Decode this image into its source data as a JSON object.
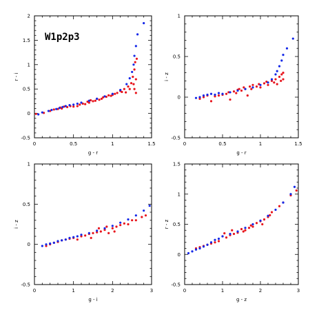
{
  "figure_title": "W1p2p3",
  "colors": {
    "red": "#e8141c",
    "blue": "#1428e8",
    "axis": "#000000"
  },
  "chart_data": [
    {
      "type": "scatter",
      "title": "W1p2p3",
      "xlabel": "g - r",
      "ylabel": "r - i",
      "xlim": [
        0,
        1.5
      ],
      "ylim": [
        -0.5,
        2
      ],
      "xticks": [
        0,
        0.5,
        1,
        1.5
      ],
      "yticks": [
        -0.5,
        0,
        0.5,
        1,
        1.5,
        2
      ],
      "xticklabels": [
        "0",
        "0.5",
        "1",
        "1.5"
      ],
      "yticklabels": [
        "-0.5",
        "0",
        "0.5",
        "1",
        "1.5",
        "2"
      ],
      "series": [
        {
          "color": "red",
          "points": [
            [
              0.02,
              -0.01
            ],
            [
              0.12,
              0.01
            ],
            [
              0.2,
              0.05
            ],
            [
              0.25,
              0.08
            ],
            [
              0.3,
              0.09
            ],
            [
              0.33,
              0.12
            ],
            [
              0.35,
              0.1
            ],
            [
              0.38,
              0.14
            ],
            [
              0.42,
              0.13
            ],
            [
              0.46,
              0.15
            ],
            [
              0.5,
              0.14
            ],
            [
              0.55,
              0.15
            ],
            [
              0.58,
              0.18
            ],
            [
              0.62,
              0.2
            ],
            [
              0.65,
              0.19
            ],
            [
              0.68,
              0.24
            ],
            [
              0.7,
              0.22
            ],
            [
              0.72,
              0.27
            ],
            [
              0.75,
              0.25
            ],
            [
              0.78,
              0.26
            ],
            [
              0.8,
              0.3
            ],
            [
              0.83,
              0.28
            ],
            [
              0.86,
              0.3
            ],
            [
              0.88,
              0.33
            ],
            [
              0.92,
              0.34
            ],
            [
              0.95,
              0.37
            ],
            [
              0.98,
              0.36
            ],
            [
              1.0,
              0.38
            ],
            [
              1.03,
              0.4
            ],
            [
              1.06,
              0.42
            ],
            [
              1.1,
              0.46
            ],
            [
              1.12,
              0.44
            ],
            [
              1.15,
              0.5
            ],
            [
              1.17,
              0.43
            ],
            [
              1.2,
              0.55
            ],
            [
              1.22,
              0.5
            ],
            [
              1.24,
              0.62
            ],
            [
              1.26,
              0.75
            ],
            [
              1.27,
              0.6
            ],
            [
              1.28,
              0.9
            ],
            [
              1.28,
              0.5
            ],
            [
              1.29,
              1.05
            ],
            [
              1.3,
              0.7
            ],
            [
              1.3,
              0.42
            ],
            [
              1.31,
              1.12
            ]
          ]
        },
        {
          "color": "blue",
          "points": [
            [
              0.05,
              -0.02
            ],
            [
              0.1,
              0.02
            ],
            [
              0.18,
              0.05
            ],
            [
              0.22,
              0.07
            ],
            [
              0.28,
              0.09
            ],
            [
              0.32,
              0.11
            ],
            [
              0.36,
              0.13
            ],
            [
              0.4,
              0.15
            ],
            [
              0.45,
              0.17
            ],
            [
              0.5,
              0.18
            ],
            [
              0.55,
              0.2
            ],
            [
              0.6,
              0.22
            ],
            [
              0.7,
              0.26
            ],
            [
              0.8,
              0.3
            ],
            [
              0.9,
              0.35
            ],
            [
              1.0,
              0.4
            ],
            [
              1.1,
              0.48
            ],
            [
              1.18,
              0.6
            ],
            [
              1.22,
              0.72
            ],
            [
              1.25,
              0.85
            ],
            [
              1.27,
              1.0
            ],
            [
              1.28,
              1.18
            ],
            [
              1.3,
              1.38
            ],
            [
              1.32,
              1.62
            ],
            [
              1.4,
              1.85
            ]
          ]
        }
      ]
    },
    {
      "type": "scatter",
      "xlabel": "g - r",
      "ylabel": "i - z",
      "xlim": [
        0,
        1.5
      ],
      "ylim": [
        -0.5,
        1
      ],
      "xticks": [
        0,
        0.5,
        1,
        1.5
      ],
      "yticks": [
        -0.5,
        0,
        0.5,
        1
      ],
      "xticklabels": [
        "0",
        "0.5",
        "1",
        "1.5"
      ],
      "yticklabels": [
        "-0.5",
        "0",
        "0.5",
        "1"
      ],
      "series": [
        {
          "color": "red",
          "points": [
            [
              0.2,
              -0.02
            ],
            [
              0.25,
              0.0
            ],
            [
              0.3,
              0.02
            ],
            [
              0.35,
              -0.05
            ],
            [
              0.4,
              0.01
            ],
            [
              0.45,
              0.02
            ],
            [
              0.5,
              0.03
            ],
            [
              0.55,
              0.04
            ],
            [
              0.58,
              0.06
            ],
            [
              0.6,
              -0.03
            ],
            [
              0.65,
              0.07
            ],
            [
              0.68,
              0.05
            ],
            [
              0.7,
              0.09
            ],
            [
              0.72,
              0.1
            ],
            [
              0.75,
              0.08
            ],
            [
              0.78,
              0.12
            ],
            [
              0.8,
              0.1
            ],
            [
              0.83,
              0.02
            ],
            [
              0.86,
              0.13
            ],
            [
              0.88,
              0.1
            ],
            [
              0.9,
              0.15
            ],
            [
              0.95,
              0.13
            ],
            [
              0.98,
              0.16
            ],
            [
              1.0,
              0.12
            ],
            [
              1.05,
              0.17
            ],
            [
              1.08,
              0.19
            ],
            [
              1.1,
              0.15
            ],
            [
              1.15,
              0.2
            ],
            [
              1.18,
              0.18
            ],
            [
              1.2,
              0.22
            ],
            [
              1.22,
              0.16
            ],
            [
              1.25,
              0.25
            ],
            [
              1.27,
              0.2
            ],
            [
              1.28,
              0.28
            ],
            [
              1.3,
              0.3
            ],
            [
              1.3,
              0.22
            ]
          ]
        },
        {
          "color": "blue",
          "points": [
            [
              0.15,
              -0.01
            ],
            [
              0.2,
              0.0
            ],
            [
              0.25,
              0.02
            ],
            [
              0.3,
              0.03
            ],
            [
              0.35,
              0.04
            ],
            [
              0.4,
              0.03
            ],
            [
              0.45,
              0.05
            ],
            [
              0.5,
              0.04
            ],
            [
              0.6,
              0.06
            ],
            [
              0.7,
              0.08
            ],
            [
              0.8,
              0.1
            ],
            [
              0.9,
              0.12
            ],
            [
              1.0,
              0.15
            ],
            [
              1.1,
              0.18
            ],
            [
              1.15,
              0.22
            ],
            [
              1.2,
              0.28
            ],
            [
              1.22,
              0.32
            ],
            [
              1.25,
              0.38
            ],
            [
              1.28,
              0.45
            ],
            [
              1.3,
              0.52
            ],
            [
              1.35,
              0.6
            ],
            [
              1.43,
              0.72
            ]
          ]
        }
      ]
    },
    {
      "type": "scatter",
      "xlabel": "g - i",
      "ylabel": "i - z",
      "xlim": [
        0,
        3
      ],
      "ylim": [
        -0.5,
        1
      ],
      "xticks": [
        0,
        1,
        2,
        3
      ],
      "yticks": [
        -0.5,
        0,
        0.5,
        1
      ],
      "xticklabels": [
        "0",
        "1",
        "2",
        "3"
      ],
      "yticklabels": [
        "-0.5",
        "0",
        "0.5",
        "1"
      ],
      "series": [
        {
          "color": "red",
          "points": [
            [
              0.3,
              -0.02
            ],
            [
              0.4,
              0.0
            ],
            [
              0.5,
              0.02
            ],
            [
              0.6,
              0.03
            ],
            [
              0.7,
              0.05
            ],
            [
              0.8,
              0.06
            ],
            [
              0.9,
              0.07
            ],
            [
              1.0,
              0.08
            ],
            [
              1.1,
              0.06
            ],
            [
              1.2,
              0.1
            ],
            [
              1.3,
              0.11
            ],
            [
              1.4,
              0.13
            ],
            [
              1.45,
              0.08
            ],
            [
              1.5,
              0.14
            ],
            [
              1.6,
              0.15
            ],
            [
              1.65,
              0.2
            ],
            [
              1.7,
              0.16
            ],
            [
              1.8,
              0.18
            ],
            [
              1.85,
              0.22
            ],
            [
              1.9,
              0.14
            ],
            [
              2.0,
              0.2
            ],
            [
              2.05,
              0.16
            ],
            [
              2.1,
              0.22
            ],
            [
              2.2,
              0.24
            ],
            [
              2.3,
              0.26
            ],
            [
              2.4,
              0.25
            ],
            [
              2.5,
              0.3
            ],
            [
              2.6,
              0.3
            ],
            [
              2.75,
              0.34
            ],
            [
              2.85,
              0.36
            ]
          ]
        },
        {
          "color": "blue",
          "points": [
            [
              0.2,
              -0.02
            ],
            [
              0.3,
              0.0
            ],
            [
              0.4,
              0.01
            ],
            [
              0.5,
              0.02
            ],
            [
              0.6,
              0.04
            ],
            [
              0.7,
              0.05
            ],
            [
              0.8,
              0.06
            ],
            [
              0.9,
              0.08
            ],
            [
              1.0,
              0.09
            ],
            [
              1.1,
              0.1
            ],
            [
              1.2,
              0.12
            ],
            [
              1.4,
              0.14
            ],
            [
              1.6,
              0.17
            ],
            [
              1.8,
              0.2
            ],
            [
              2.0,
              0.23
            ],
            [
              2.2,
              0.27
            ],
            [
              2.4,
              0.31
            ],
            [
              2.6,
              0.36
            ],
            [
              2.8,
              0.42
            ],
            [
              2.95,
              0.48
            ]
          ]
        }
      ]
    },
    {
      "type": "scatter",
      "xlabel": "g - z",
      "ylabel": "r - z",
      "xlim": [
        0,
        3
      ],
      "ylim": [
        -0.5,
        1.5
      ],
      "xticks": [
        0,
        1,
        2,
        3
      ],
      "yticks": [
        -0.5,
        0,
        0.5,
        1,
        1.5
      ],
      "xticklabels": [
        "0",
        "1",
        "2",
        "3"
      ],
      "yticklabels": [
        "-0.5",
        "0",
        "0.5",
        "1",
        "1.5"
      ],
      "series": [
        {
          "color": "red",
          "points": [
            [
              0.3,
              0.1
            ],
            [
              0.4,
              0.12
            ],
            [
              0.5,
              0.14
            ],
            [
              0.6,
              0.16
            ],
            [
              0.7,
              0.18
            ],
            [
              0.8,
              0.2
            ],
            [
              0.9,
              0.22
            ],
            [
              1.0,
              0.3
            ],
            [
              1.05,
              0.35
            ],
            [
              1.1,
              0.28
            ],
            [
              1.2,
              0.32
            ],
            [
              1.25,
              0.4
            ],
            [
              1.3,
              0.34
            ],
            [
              1.4,
              0.36
            ],
            [
              1.5,
              0.42
            ],
            [
              1.55,
              0.38
            ],
            [
              1.6,
              0.4
            ],
            [
              1.7,
              0.44
            ],
            [
              1.75,
              0.48
            ],
            [
              1.8,
              0.46
            ],
            [
              1.9,
              0.52
            ],
            [
              2.0,
              0.55
            ],
            [
              2.05,
              0.5
            ],
            [
              2.1,
              0.58
            ],
            [
              2.2,
              0.62
            ],
            [
              2.25,
              0.65
            ],
            [
              2.3,
              0.7
            ],
            [
              2.5,
              0.8
            ],
            [
              2.6,
              0.86
            ],
            [
              2.8,
              0.98
            ],
            [
              2.95,
              1.06
            ]
          ]
        },
        {
          "color": "blue",
          "points": [
            [
              0.1,
              0.02
            ],
            [
              0.2,
              0.05
            ],
            [
              0.3,
              0.08
            ],
            [
              0.4,
              0.1
            ],
            [
              0.5,
              0.13
            ],
            [
              0.6,
              0.16
            ],
            [
              0.7,
              0.2
            ],
            [
              0.8,
              0.24
            ],
            [
              0.9,
              0.26
            ],
            [
              1.0,
              0.3
            ],
            [
              1.2,
              0.34
            ],
            [
              1.4,
              0.38
            ],
            [
              1.6,
              0.44
            ],
            [
              1.8,
              0.5
            ],
            [
              2.0,
              0.56
            ],
            [
              2.2,
              0.64
            ],
            [
              2.4,
              0.74
            ],
            [
              2.6,
              0.86
            ],
            [
              2.8,
              1.0
            ],
            [
              2.9,
              1.12
            ]
          ]
        }
      ]
    }
  ]
}
